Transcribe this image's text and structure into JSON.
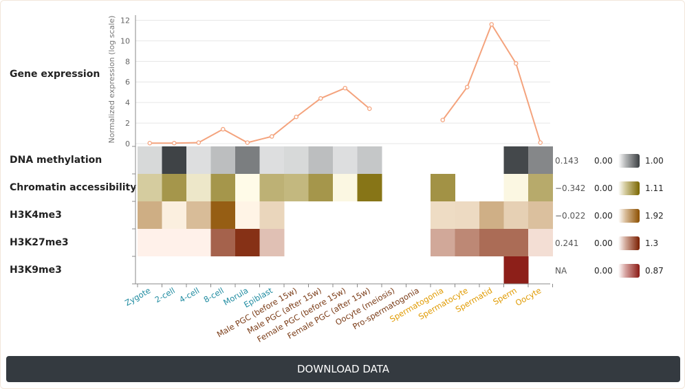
{
  "download_label": "DOWNLOAD DATA",
  "colors": {
    "methyl": [
      "#f3f4f4",
      "#3b3f42"
    ],
    "access": [
      "#fffbe8",
      "#7a6600"
    ],
    "h3k4": [
      "#fff4e6",
      "#8c4f00"
    ],
    "h3k27": [
      "#fff1ea",
      "#7a1e00"
    ],
    "h3k9": [
      "#fde9e9",
      "#8a1a14"
    ],
    "line": "#f4a37d"
  },
  "chart_data": {
    "type": "line+heatmap",
    "categories": [
      "Zygote",
      "2-cell",
      "4-cell",
      "8-cell",
      "Morula",
      "Epiblast",
      "Male PGC (before 15w)",
      "Male PGC (after 15w)",
      "Female PGC (before 15w)",
      "Female PGC (after 15w)",
      "Oocyte (meiosis)",
      "Pro-spermatogonia",
      "Spermatogonia",
      "Spermatocyte",
      "Spermatid",
      "Sperm",
      "Oocyte"
    ],
    "category_groups": [
      "embryo",
      "embryo",
      "embryo",
      "embryo",
      "embryo",
      "embryo",
      "germ",
      "germ",
      "germ",
      "germ",
      "germ",
      "germ",
      "gamete",
      "gamete",
      "gamete",
      "gamete",
      "gamete"
    ],
    "group_colors": {
      "embryo": "#1f8ba0",
      "germ": "#7a3b16",
      "gamete": "#e09a00"
    },
    "expression": {
      "label": "Gene expression",
      "ylabel": "Normalized expression (log scale)",
      "yticks": [
        0,
        2,
        4,
        6,
        8,
        10,
        12
      ],
      "ylim": [
        0,
        12.5
      ],
      "values": [
        0.05,
        0.05,
        0.1,
        1.4,
        0.1,
        0.7,
        2.6,
        4.4,
        5.4,
        3.4,
        null,
        null,
        2.3,
        5.5,
        11.6,
        7.8,
        0.1
      ]
    },
    "heat_rows": [
      {
        "label": "DNA methylation",
        "score": "0.143",
        "min": "0.00",
        "max": "1.00",
        "colors": "methyl",
        "values": [
          0.15,
          0.98,
          0.12,
          0.3,
          0.65,
          0.12,
          0.15,
          0.3,
          0.12,
          0.25,
          null,
          null,
          null,
          null,
          null,
          0.95,
          0.6
        ]
      },
      {
        "label": "Chromatin accessibility",
        "score": "−0.342",
        "min": "0.00",
        "max": "1.11",
        "colors": "access",
        "values": [
          0.35,
          0.75,
          0.15,
          0.75,
          0,
          0.55,
          0.5,
          0.75,
          0.03,
          1.0,
          null,
          null,
          0.78,
          null,
          null,
          0.03,
          0.6
        ]
      },
      {
        "label": "H3K4me3",
        "score": "−0.022",
        "min": "0.00",
        "max": "1.92",
        "colors": "h3k4",
        "values": [
          0.82,
          0.06,
          0.65,
          1.75,
          0,
          0.35,
          null,
          null,
          null,
          null,
          null,
          null,
          0.28,
          0.3,
          0.8,
          0.42,
          0.6
        ]
      },
      {
        "label": "H3K27me3",
        "score": "0.241",
        "min": "0.00",
        "max": "1.3",
        "colors": "h3k27",
        "values": [
          0,
          0,
          0,
          0.88,
          1.18,
          0.3,
          null,
          null,
          null,
          null,
          null,
          null,
          0.45,
          0.65,
          0.82,
          0.82,
          0.12
        ]
      },
      {
        "label": "H3K9me3",
        "score": "NA",
        "min": "0.00",
        "max": "0.87",
        "colors": "h3k9",
        "values": [
          null,
          null,
          null,
          null,
          null,
          null,
          null,
          null,
          null,
          null,
          null,
          null,
          null,
          null,
          null,
          0.85,
          null
        ]
      }
    ]
  }
}
